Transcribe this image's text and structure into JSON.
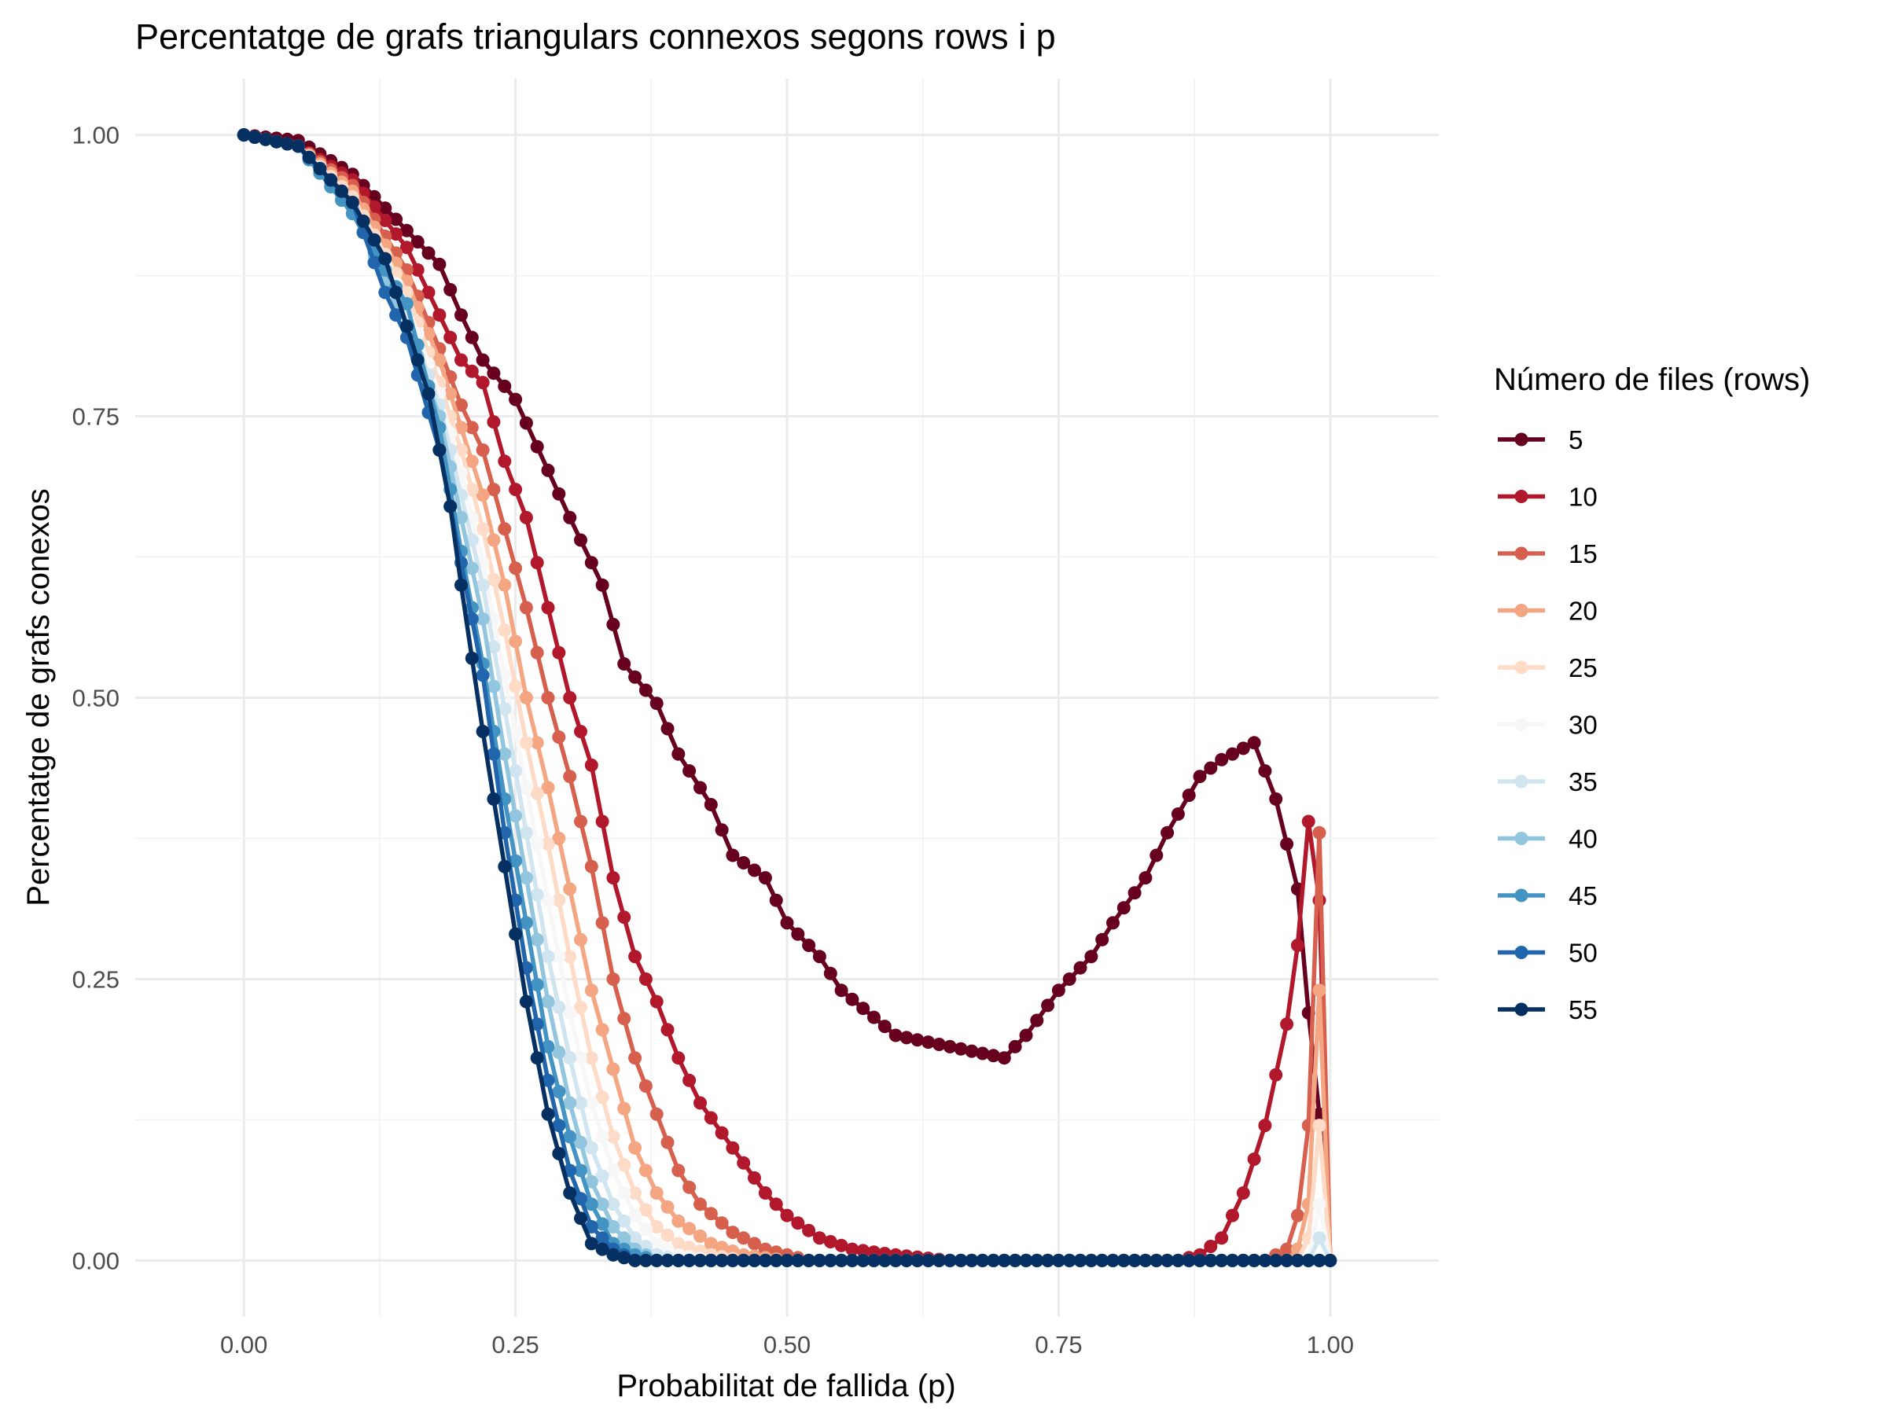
{
  "chart_data": {
    "type": "line",
    "title": "Percentatge de grafs triangulars connexos segons rows i p",
    "xlabel": "Probabilitat de fallida (p)",
    "ylabel": "Percentatge de grafs conexos",
    "xlim": [
      -0.1,
      1.1
    ],
    "ylim": [
      -0.05,
      1.05
    ],
    "x_ticks": [
      0,
      0.25,
      0.5,
      0.75,
      1
    ],
    "x_tick_labels": [
      "0.00",
      "0.25",
      "0.50",
      "0.75",
      "1.00"
    ],
    "y_ticks": [
      0,
      0.25,
      0.5,
      0.75,
      1
    ],
    "y_tick_labels": [
      "0.00",
      "0.25",
      "0.50",
      "0.75",
      "1.00"
    ],
    "grid": true,
    "markers": true,
    "legend": {
      "title": "Número de files (rows)",
      "position": "right"
    },
    "series": [
      {
        "name": "5",
        "color": "#67001f",
        "anchors": [
          [
            0,
            1
          ],
          [
            0.05,
            0.995
          ],
          [
            0.1,
            0.965
          ],
          [
            0.15,
            0.915
          ],
          [
            0.18,
            0.885
          ],
          [
            0.2,
            0.84
          ],
          [
            0.22,
            0.8
          ],
          [
            0.25,
            0.765
          ],
          [
            0.3,
            0.66
          ],
          [
            0.33,
            0.6
          ],
          [
            0.35,
            0.53
          ],
          [
            0.38,
            0.495
          ],
          [
            0.4,
            0.45
          ],
          [
            0.43,
            0.405
          ],
          [
            0.45,
            0.36
          ],
          [
            0.48,
            0.34
          ],
          [
            0.5,
            0.3
          ],
          [
            0.53,
            0.27
          ],
          [
            0.55,
            0.24
          ],
          [
            0.6,
            0.2
          ],
          [
            0.65,
            0.19
          ],
          [
            0.7,
            0.18
          ],
          [
            0.72,
            0.2
          ],
          [
            0.75,
            0.24
          ],
          [
            0.78,
            0.27
          ],
          [
            0.8,
            0.3
          ],
          [
            0.83,
            0.34
          ],
          [
            0.85,
            0.38
          ],
          [
            0.88,
            0.43
          ],
          [
            0.9,
            0.445
          ],
          [
            0.93,
            0.46
          ],
          [
            0.95,
            0.41
          ],
          [
            0.97,
            0.33
          ],
          [
            0.98,
            0.22
          ],
          [
            0.99,
            0.13
          ],
          [
            1,
            0
          ]
        ]
      },
      {
        "name": "10",
        "color": "#b2182b",
        "anchors": [
          [
            0,
            1
          ],
          [
            0.05,
            0.99
          ],
          [
            0.1,
            0.96
          ],
          [
            0.15,
            0.9
          ],
          [
            0.18,
            0.84
          ],
          [
            0.2,
            0.8
          ],
          [
            0.22,
            0.78
          ],
          [
            0.24,
            0.71
          ],
          [
            0.26,
            0.66
          ],
          [
            0.28,
            0.58
          ],
          [
            0.3,
            0.5
          ],
          [
            0.32,
            0.44
          ],
          [
            0.34,
            0.34
          ],
          [
            0.36,
            0.27
          ],
          [
            0.38,
            0.23
          ],
          [
            0.4,
            0.18
          ],
          [
            0.42,
            0.14
          ],
          [
            0.45,
            0.1
          ],
          [
            0.48,
            0.06
          ],
          [
            0.5,
            0.04
          ],
          [
            0.53,
            0.02
          ],
          [
            0.56,
            0.01
          ],
          [
            0.6,
            0.005
          ],
          [
            0.65,
            0
          ],
          [
            0.86,
            0
          ],
          [
            0.88,
            0.005
          ],
          [
            0.9,
            0.02
          ],
          [
            0.92,
            0.06
          ],
          [
            0.94,
            0.12
          ],
          [
            0.96,
            0.21
          ],
          [
            0.97,
            0.28
          ],
          [
            0.98,
            0.39
          ],
          [
            0.99,
            0.32
          ],
          [
            1,
            0
          ]
        ]
      },
      {
        "name": "15",
        "color": "#d6604d",
        "anchors": [
          [
            0,
            1
          ],
          [
            0.05,
            0.99
          ],
          [
            0.1,
            0.955
          ],
          [
            0.15,
            0.88
          ],
          [
            0.18,
            0.81
          ],
          [
            0.2,
            0.76
          ],
          [
            0.22,
            0.72
          ],
          [
            0.24,
            0.65
          ],
          [
            0.26,
            0.58
          ],
          [
            0.28,
            0.5
          ],
          [
            0.3,
            0.43
          ],
          [
            0.32,
            0.35
          ],
          [
            0.34,
            0.25
          ],
          [
            0.36,
            0.18
          ],
          [
            0.38,
            0.13
          ],
          [
            0.4,
            0.08
          ],
          [
            0.42,
            0.05
          ],
          [
            0.45,
            0.025
          ],
          [
            0.48,
            0.01
          ],
          [
            0.52,
            0
          ],
          [
            0.94,
            0
          ],
          [
            0.96,
            0.01
          ],
          [
            0.97,
            0.04
          ],
          [
            0.98,
            0.12
          ],
          [
            0.99,
            0.38
          ],
          [
            1,
            0
          ]
        ]
      },
      {
        "name": "20",
        "color": "#f4a582",
        "anchors": [
          [
            0,
            1
          ],
          [
            0.05,
            0.99
          ],
          [
            0.1,
            0.95
          ],
          [
            0.15,
            0.87
          ],
          [
            0.18,
            0.8
          ],
          [
            0.2,
            0.74
          ],
          [
            0.22,
            0.68
          ],
          [
            0.24,
            0.6
          ],
          [
            0.26,
            0.5
          ],
          [
            0.28,
            0.42
          ],
          [
            0.3,
            0.33
          ],
          [
            0.32,
            0.24
          ],
          [
            0.34,
            0.17
          ],
          [
            0.36,
            0.1
          ],
          [
            0.38,
            0.06
          ],
          [
            0.4,
            0.035
          ],
          [
            0.43,
            0.015
          ],
          [
            0.46,
            0.005
          ],
          [
            0.5,
            0
          ],
          [
            0.96,
            0
          ],
          [
            0.97,
            0.01
          ],
          [
            0.98,
            0.05
          ],
          [
            0.99,
            0.24
          ],
          [
            1,
            0
          ]
        ]
      },
      {
        "name": "25",
        "color": "#fddbc7",
        "anchors": [
          [
            0,
            1
          ],
          [
            0.05,
            0.99
          ],
          [
            0.1,
            0.945
          ],
          [
            0.15,
            0.86
          ],
          [
            0.18,
            0.78
          ],
          [
            0.2,
            0.72
          ],
          [
            0.22,
            0.65
          ],
          [
            0.24,
            0.56
          ],
          [
            0.26,
            0.46
          ],
          [
            0.28,
            0.37
          ],
          [
            0.3,
            0.27
          ],
          [
            0.32,
            0.18
          ],
          [
            0.34,
            0.11
          ],
          [
            0.36,
            0.06
          ],
          [
            0.38,
            0.03
          ],
          [
            0.4,
            0.015
          ],
          [
            0.43,
            0.005
          ],
          [
            0.46,
            0
          ],
          [
            0.97,
            0
          ],
          [
            0.98,
            0.02
          ],
          [
            0.99,
            0.12
          ],
          [
            1,
            0
          ]
        ]
      },
      {
        "name": "30",
        "color": "#f7f7f7",
        "anchors": [
          [
            0,
            1
          ],
          [
            0.05,
            0.99
          ],
          [
            0.1,
            0.94
          ],
          [
            0.15,
            0.85
          ],
          [
            0.18,
            0.77
          ],
          [
            0.2,
            0.7
          ],
          [
            0.22,
            0.62
          ],
          [
            0.24,
            0.52
          ],
          [
            0.26,
            0.42
          ],
          [
            0.28,
            0.32
          ],
          [
            0.3,
            0.22
          ],
          [
            0.32,
            0.14
          ],
          [
            0.34,
            0.08
          ],
          [
            0.36,
            0.04
          ],
          [
            0.38,
            0.015
          ],
          [
            0.4,
            0.005
          ],
          [
            0.43,
            0
          ],
          [
            0.98,
            0
          ],
          [
            0.99,
            0.05
          ],
          [
            1,
            0
          ]
        ]
      },
      {
        "name": "35",
        "color": "#d1e5f0",
        "anchors": [
          [
            0,
            1
          ],
          [
            0.05,
            0.99
          ],
          [
            0.1,
            0.94
          ],
          [
            0.15,
            0.84
          ],
          [
            0.18,
            0.76
          ],
          [
            0.2,
            0.68
          ],
          [
            0.22,
            0.6
          ],
          [
            0.24,
            0.49
          ],
          [
            0.26,
            0.38
          ],
          [
            0.28,
            0.27
          ],
          [
            0.3,
            0.18
          ],
          [
            0.32,
            0.1
          ],
          [
            0.34,
            0.05
          ],
          [
            0.36,
            0.02
          ],
          [
            0.38,
            0.005
          ],
          [
            0.4,
            0
          ],
          [
            0.98,
            0
          ],
          [
            0.99,
            0.02
          ],
          [
            1,
            0
          ]
        ]
      },
      {
        "name": "40",
        "color": "#92c5de",
        "anchors": [
          [
            0,
            1
          ],
          [
            0.05,
            0.99
          ],
          [
            0.1,
            0.935
          ],
          [
            0.15,
            0.83
          ],
          [
            0.18,
            0.75
          ],
          [
            0.2,
            0.66
          ],
          [
            0.22,
            0.57
          ],
          [
            0.24,
            0.45
          ],
          [
            0.26,
            0.34
          ],
          [
            0.28,
            0.23
          ],
          [
            0.3,
            0.14
          ],
          [
            0.32,
            0.07
          ],
          [
            0.34,
            0.03
          ],
          [
            0.36,
            0.01
          ],
          [
            0.38,
            0
          ],
          [
            1,
            0
          ]
        ]
      },
      {
        "name": "45",
        "color": "#4393c3",
        "anchors": [
          [
            0,
            1
          ],
          [
            0.05,
            0.99
          ],
          [
            0.1,
            0.93
          ],
          [
            0.13,
            0.88
          ],
          [
            0.15,
            0.85
          ],
          [
            0.18,
            0.74
          ],
          [
            0.2,
            0.63
          ],
          [
            0.22,
            0.53
          ],
          [
            0.24,
            0.41
          ],
          [
            0.26,
            0.3
          ],
          [
            0.28,
            0.19
          ],
          [
            0.3,
            0.11
          ],
          [
            0.32,
            0.05
          ],
          [
            0.34,
            0.015
          ],
          [
            0.36,
            0.005
          ],
          [
            0.38,
            0
          ],
          [
            1,
            0
          ]
        ]
      },
      {
        "name": "50",
        "color": "#2166ac",
        "anchors": [
          [
            0,
            1
          ],
          [
            0.05,
            0.99
          ],
          [
            0.1,
            0.94
          ],
          [
            0.13,
            0.86
          ],
          [
            0.15,
            0.82
          ],
          [
            0.18,
            0.72
          ],
          [
            0.2,
            0.62
          ],
          [
            0.22,
            0.52
          ],
          [
            0.24,
            0.38
          ],
          [
            0.26,
            0.26
          ],
          [
            0.28,
            0.16
          ],
          [
            0.3,
            0.08
          ],
          [
            0.32,
            0.03
          ],
          [
            0.34,
            0.01
          ],
          [
            0.36,
            0
          ],
          [
            1,
            0
          ]
        ]
      },
      {
        "name": "55",
        "color": "#053061",
        "anchors": [
          [
            0,
            1
          ],
          [
            0.05,
            0.99
          ],
          [
            0.1,
            0.94
          ],
          [
            0.13,
            0.89
          ],
          [
            0.15,
            0.83
          ],
          [
            0.17,
            0.77
          ],
          [
            0.19,
            0.67
          ],
          [
            0.2,
            0.6
          ],
          [
            0.22,
            0.47
          ],
          [
            0.24,
            0.35
          ],
          [
            0.26,
            0.23
          ],
          [
            0.28,
            0.13
          ],
          [
            0.3,
            0.06
          ],
          [
            0.32,
            0.015
          ],
          [
            0.34,
            0.005
          ],
          [
            0.36,
            0
          ],
          [
            1,
            0
          ]
        ]
      }
    ]
  }
}
